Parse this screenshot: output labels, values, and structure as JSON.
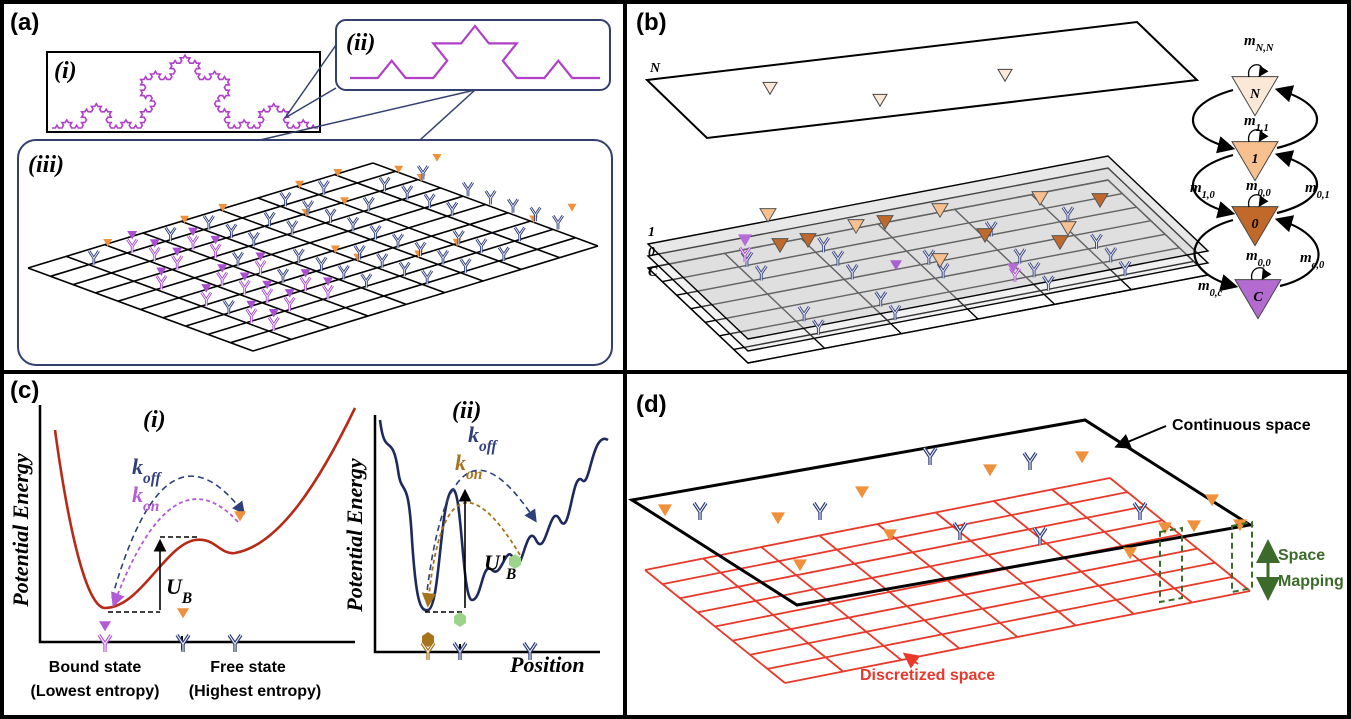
{
  "panel_a": {
    "label": "(a)",
    "inset_i": "(i)",
    "inset_ii": "(ii)",
    "inset_iii": "(iii)"
  },
  "panel_b": {
    "label": "(b)",
    "layers": [
      "N",
      "1",
      "0",
      "C"
    ],
    "states": [
      "N",
      "1",
      "0",
      "C"
    ],
    "rates": [
      {
        "symbol": "m",
        "sub": "N,N"
      },
      {
        "symbol": "m",
        "sub": "1,1"
      },
      {
        "symbol": "m",
        "sub": "1,0"
      },
      {
        "symbol": "m",
        "sub": "0,0"
      },
      {
        "symbol": "m",
        "sub": "0,1"
      },
      {
        "symbol": "m",
        "sub": "0,0"
      },
      {
        "symbol": "m",
        "sub": "c,0"
      },
      {
        "symbol": "m",
        "sub": "0,c"
      }
    ]
  },
  "panel_c": {
    "label": "(c)",
    "plot_i": {
      "label": "(i)",
      "y_axis": "Potential Energy",
      "k_off": {
        "symbol": "k",
        "sub": "off"
      },
      "k_on": {
        "symbol": "k",
        "sub": "on"
      },
      "barrier": {
        "symbol": "U",
        "sub": "B"
      },
      "bound_state": [
        "Bound state",
        "(Lowest entropy)"
      ],
      "free_state": [
        "Free state",
        "(Highest entropy)"
      ]
    },
    "plot_ii": {
      "label": "(ii)",
      "y_axis": "Potential Energy",
      "k_off": {
        "symbol": "k",
        "sub": "off"
      },
      "k_on": {
        "symbol": "k",
        "sub": "on"
      },
      "barrier": {
        "symbol": "U'",
        "sub": "B"
      },
      "x_axis": "Position"
    }
  },
  "panel_d": {
    "label": "(d)",
    "continuous": "Continuous space",
    "mapping": [
      "Space",
      "Mapping"
    ],
    "discretized": "Discretized space"
  }
}
